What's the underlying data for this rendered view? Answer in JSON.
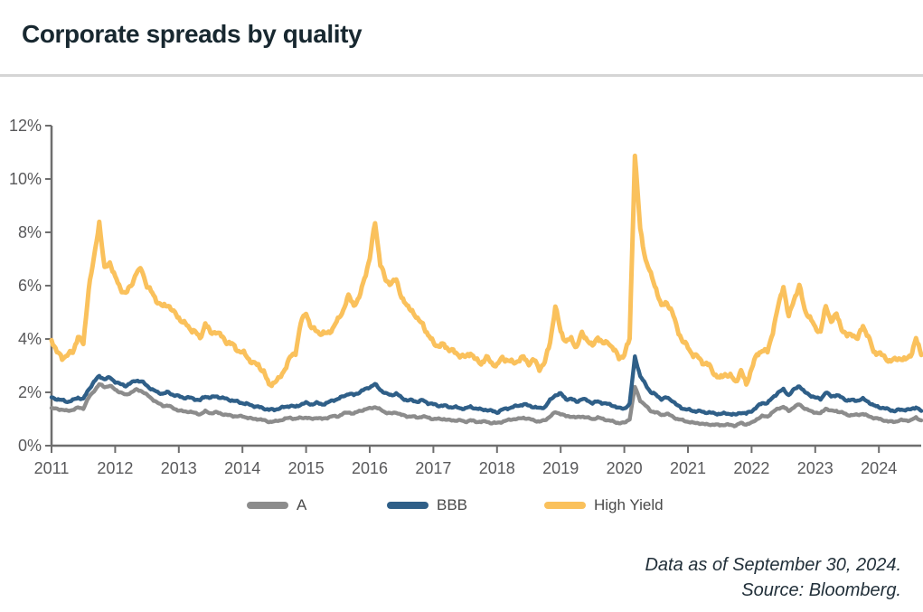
{
  "page": {
    "title": "Corporate spreads by quality"
  },
  "legend": [
    {
      "label": "A",
      "color": "#8C8C8C"
    },
    {
      "label": "BBB",
      "color": "#2F5F88"
    },
    {
      "label": "High Yield",
      "color": "#FAC15C"
    }
  ],
  "footer": {
    "line1": "Data as of September 30, 2024.",
    "line2": "Source: Bloomberg."
  },
  "chart_data": {
    "type": "line",
    "title": "Corporate spreads by quality",
    "x_unit": "monthly, Jan 2011 through Sep 2024",
    "x_tick_labels": [
      "2011",
      "2012",
      "2013",
      "2014",
      "2015",
      "2016",
      "2017",
      "2018",
      "2019",
      "2020",
      "2021",
      "2022",
      "2023",
      "2024"
    ],
    "y_ticks": [
      {
        "value": 0,
        "label": "0%"
      },
      {
        "value": 2,
        "label": "2%"
      },
      {
        "value": 4,
        "label": "4%"
      },
      {
        "value": 6,
        "label": "6%"
      },
      {
        "value": 8,
        "label": "8%"
      },
      {
        "value": 10,
        "label": "10%"
      },
      {
        "value": 12,
        "label": "12%"
      }
    ],
    "ylim": [
      0,
      12
    ],
    "grid": false,
    "legend_position": "bottom",
    "annotations": {
      "as_of": "September 30, 2024",
      "source": "Bloomberg"
    },
    "series": [
      {
        "name": "A",
        "color": "#8C8C8C",
        "values": [
          1.4,
          1.38,
          1.35,
          1.3,
          1.35,
          1.42,
          1.4,
          1.8,
          2.05,
          2.3,
          2.2,
          2.25,
          2.1,
          2.0,
          1.9,
          2.0,
          2.1,
          2.05,
          1.9,
          1.75,
          1.6,
          1.5,
          1.5,
          1.4,
          1.32,
          1.28,
          1.28,
          1.22,
          1.18,
          1.28,
          1.22,
          1.25,
          1.2,
          1.15,
          1.12,
          1.1,
          1.1,
          1.05,
          1.0,
          1.0,
          0.95,
          0.9,
          0.9,
          0.95,
          1.0,
          1.05,
          1.0,
          1.05,
          1.05,
          1.0,
          1.05,
          1.0,
          1.05,
          1.1,
          1.1,
          1.2,
          1.25,
          1.2,
          1.3,
          1.35,
          1.4,
          1.45,
          1.35,
          1.25,
          1.2,
          1.25,
          1.15,
          1.1,
          1.1,
          1.05,
          1.1,
          1.05,
          1.0,
          1.0,
          1.0,
          0.95,
          0.95,
          0.95,
          0.9,
          0.95,
          0.9,
          0.9,
          0.9,
          0.85,
          0.85,
          0.9,
          0.95,
          1.0,
          1.0,
          1.05,
          1.0,
          0.95,
          0.9,
          0.95,
          1.1,
          1.25,
          1.2,
          1.1,
          1.1,
          1.05,
          1.1,
          1.05,
          1.0,
          1.05,
          1.0,
          0.95,
          0.9,
          0.85,
          0.85,
          1.0,
          2.2,
          1.7,
          1.5,
          1.3,
          1.25,
          1.15,
          1.2,
          1.1,
          1.0,
          0.95,
          0.9,
          0.85,
          0.85,
          0.8,
          0.8,
          0.78,
          0.78,
          0.78,
          0.78,
          0.75,
          0.85,
          0.8,
          0.85,
          1.0,
          1.1,
          1.1,
          1.25,
          1.4,
          1.45,
          1.3,
          1.45,
          1.55,
          1.4,
          1.3,
          1.25,
          1.2,
          1.4,
          1.3,
          1.3,
          1.25,
          1.15,
          1.15,
          1.15,
          1.2,
          1.1,
          1.05,
          1.0,
          0.95,
          0.9,
          0.9,
          0.95,
          0.95,
          0.95,
          1.05,
          0.95
        ]
      },
      {
        "name": "BBB",
        "color": "#2F5F88",
        "values": [
          1.8,
          1.75,
          1.7,
          1.65,
          1.7,
          1.8,
          1.75,
          2.1,
          2.4,
          2.6,
          2.5,
          2.55,
          2.4,
          2.3,
          2.25,
          2.35,
          2.45,
          2.4,
          2.25,
          2.1,
          2.0,
          1.95,
          2.0,
          1.9,
          1.85,
          1.8,
          1.8,
          1.75,
          1.7,
          1.85,
          1.8,
          1.85,
          1.8,
          1.75,
          1.7,
          1.65,
          1.6,
          1.55,
          1.5,
          1.45,
          1.4,
          1.35,
          1.35,
          1.4,
          1.45,
          1.5,
          1.45,
          1.55,
          1.6,
          1.55,
          1.6,
          1.55,
          1.6,
          1.7,
          1.75,
          1.85,
          1.95,
          1.9,
          2.0,
          2.1,
          2.2,
          2.3,
          2.1,
          1.95,
          1.9,
          1.95,
          1.8,
          1.7,
          1.7,
          1.65,
          1.7,
          1.6,
          1.55,
          1.5,
          1.5,
          1.45,
          1.45,
          1.4,
          1.4,
          1.45,
          1.4,
          1.35,
          1.35,
          1.3,
          1.25,
          1.35,
          1.4,
          1.45,
          1.5,
          1.55,
          1.5,
          1.45,
          1.4,
          1.45,
          1.7,
          1.9,
          1.95,
          1.75,
          1.75,
          1.65,
          1.75,
          1.7,
          1.6,
          1.65,
          1.6,
          1.55,
          1.5,
          1.4,
          1.4,
          1.55,
          3.35,
          2.6,
          2.3,
          2.0,
          1.9,
          1.75,
          1.8,
          1.7,
          1.5,
          1.4,
          1.35,
          1.3,
          1.3,
          1.25,
          1.25,
          1.2,
          1.2,
          1.2,
          1.2,
          1.15,
          1.25,
          1.2,
          1.3,
          1.45,
          1.6,
          1.6,
          1.8,
          2.0,
          2.1,
          1.9,
          2.1,
          2.25,
          2.0,
          1.9,
          1.8,
          1.75,
          2.0,
          1.85,
          1.9,
          1.8,
          1.7,
          1.7,
          1.7,
          1.75,
          1.65,
          1.5,
          1.45,
          1.4,
          1.35,
          1.3,
          1.35,
          1.35,
          1.35,
          1.45,
          1.3
        ]
      },
      {
        "name": "High Yield",
        "color": "#FAC15C",
        "values": [
          4.0,
          3.5,
          3.3,
          3.4,
          3.5,
          4.1,
          3.8,
          5.9,
          7.0,
          8.4,
          6.6,
          6.9,
          6.3,
          5.9,
          5.7,
          6.0,
          6.5,
          6.6,
          6.0,
          5.7,
          5.4,
          5.2,
          5.3,
          5.0,
          4.8,
          4.6,
          4.4,
          4.3,
          4.0,
          4.6,
          4.2,
          4.3,
          4.1,
          3.9,
          3.8,
          3.6,
          3.5,
          3.3,
          3.1,
          3.0,
          2.8,
          2.25,
          2.4,
          2.5,
          2.9,
          3.3,
          3.5,
          4.6,
          5.0,
          4.4,
          4.3,
          4.2,
          4.2,
          4.4,
          4.7,
          5.1,
          5.6,
          5.3,
          5.5,
          6.3,
          7.0,
          8.4,
          6.8,
          6.2,
          6.1,
          6.2,
          5.6,
          5.2,
          5.1,
          4.7,
          4.6,
          4.1,
          3.9,
          3.7,
          3.8,
          3.6,
          3.5,
          3.4,
          3.3,
          3.5,
          3.2,
          3.1,
          3.3,
          3.1,
          3.0,
          3.3,
          3.2,
          3.1,
          3.2,
          3.3,
          3.1,
          3.2,
          2.9,
          3.1,
          3.9,
          5.2,
          4.3,
          3.9,
          4.0,
          3.7,
          4.2,
          4.0,
          3.7,
          4.1,
          3.8,
          3.9,
          3.6,
          3.3,
          3.4,
          4.0,
          10.9,
          8.1,
          7.0,
          6.4,
          5.9,
          5.2,
          5.4,
          5.0,
          4.4,
          3.9,
          3.7,
          3.4,
          3.3,
          3.1,
          3.0,
          2.7,
          2.5,
          2.7,
          2.6,
          2.4,
          2.8,
          2.3,
          2.9,
          3.4,
          3.6,
          3.5,
          4.3,
          5.2,
          6.0,
          4.8,
          5.5,
          6.0,
          5.1,
          4.8,
          4.4,
          4.3,
          5.2,
          4.7,
          4.9,
          4.4,
          4.1,
          4.2,
          4.0,
          4.5,
          4.1,
          3.5,
          3.5,
          3.3,
          3.2,
          3.2,
          3.3,
          3.2,
          3.4,
          4.0,
          3.4
        ]
      }
    ]
  }
}
